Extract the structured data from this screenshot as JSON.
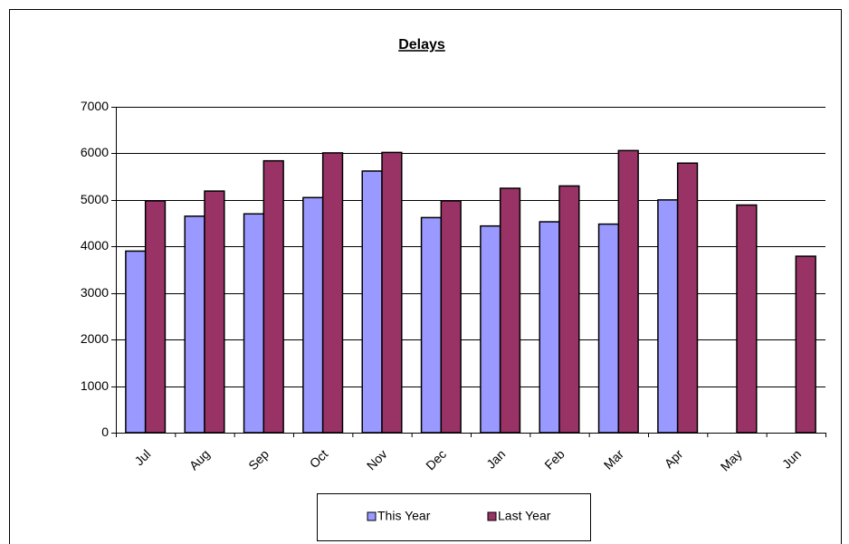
{
  "chart_data": {
    "type": "bar",
    "title": "Delays",
    "categories": [
      "Jul",
      "Aug",
      "Sep",
      "Oct",
      "Nov",
      "Dec",
      "Jan",
      "Feb",
      "Mar",
      "Apr",
      "May",
      "Jun"
    ],
    "series": [
      {
        "name": "This Year",
        "color": "#9999ff",
        "values": [
          3900,
          4650,
          4700,
          5050,
          5620,
          4620,
          4440,
          4530,
          4480,
          5000,
          null,
          null
        ]
      },
      {
        "name": "Last Year",
        "color": "#993366",
        "values": [
          4980,
          5190,
          5840,
          6010,
          6020,
          4980,
          5250,
          5300,
          6060,
          5790,
          4890,
          3790
        ]
      }
    ],
    "ylim": [
      0,
      7000
    ],
    "yticks": [
      0,
      1000,
      2000,
      3000,
      4000,
      5000,
      6000,
      7000
    ],
    "grid": true
  }
}
